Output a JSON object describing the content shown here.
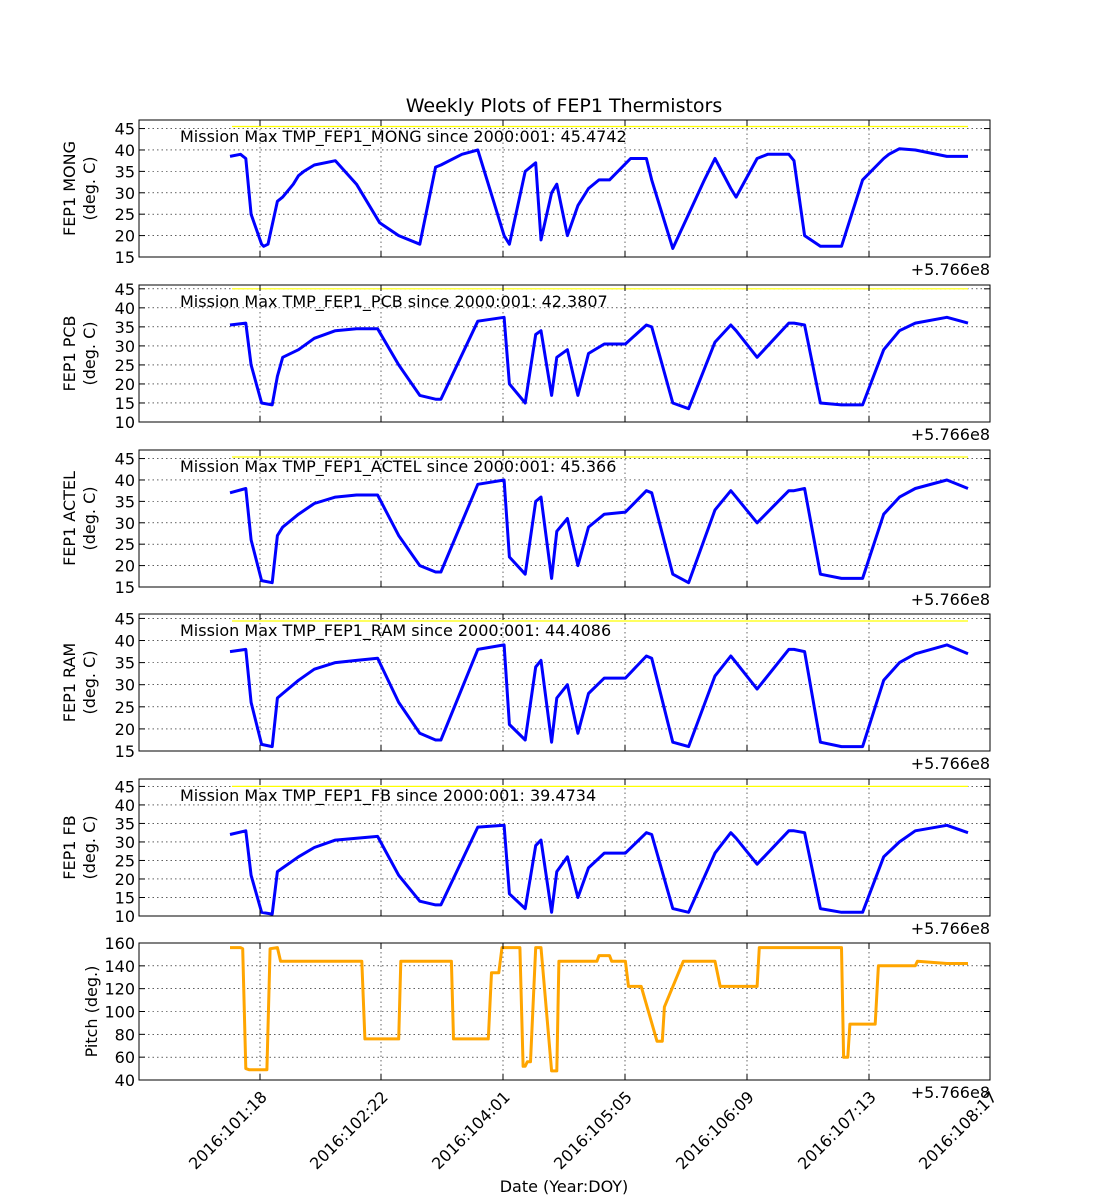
{
  "figure": {
    "title": "Weekly Plots of FEP1 Thermistors",
    "xlabel": "Date (Year:DOY)",
    "x_offset_label": "+5.766e8",
    "x_ticks": [
      "2016:101:18",
      "2016:102:22",
      "2016:104:01",
      "2016:105:05",
      "2016:106:09",
      "2016:107:13",
      "2016:108:17"
    ]
  },
  "chart_data": [
    {
      "type": "line",
      "ylabel": [
        "FEP1 MONG",
        "(deg. C)"
      ],
      "ylim": [
        15,
        47
      ],
      "yticks": [
        15,
        20,
        25,
        30,
        35,
        40,
        45
      ],
      "grid": true,
      "annotation": "Mission Max TMP_FEP1_MONG since 2000:001: 45.4742",
      "reference_value": 45.4742,
      "reference_color": "#ffff00",
      "series_color": "#0000ff",
      "x_range": [
        0,
        7
      ],
      "x": [
        0.0,
        0.1,
        0.15,
        0.2,
        0.3,
        0.32,
        0.36,
        0.45,
        0.5,
        0.6,
        0.65,
        0.7,
        0.8,
        1.0,
        1.2,
        1.42,
        1.6,
        1.8,
        1.95,
        2.0,
        2.2,
        2.35,
        2.5,
        2.6,
        2.65,
        2.8,
        2.9,
        2.95,
        3.05,
        3.1,
        3.2,
        3.3,
        3.4,
        3.5,
        3.6,
        3.8,
        3.95,
        4.0,
        4.2,
        4.35,
        4.5,
        4.6,
        4.75,
        4.8,
        5.0,
        5.1,
        5.3,
        5.35,
        5.45,
        5.6,
        5.8,
        6.0,
        6.2,
        6.25,
        6.35,
        6.5,
        6.8,
        7.0
      ],
      "y": [
        38.5,
        39,
        38,
        25,
        18,
        17.5,
        18,
        28,
        29,
        32,
        34,
        35,
        36.5,
        37.5,
        32,
        23,
        20,
        18,
        36,
        36.5,
        39,
        40,
        28,
        20,
        18,
        35,
        37,
        19,
        30,
        32,
        20,
        27,
        31,
        33,
        33,
        38,
        38,
        33,
        17,
        25,
        33,
        38,
        31,
        29,
        38,
        39,
        39,
        37.5,
        20,
        17.5,
        17.5,
        33,
        38,
        39,
        40.3,
        40,
        38.5,
        38.5
      ],
      "x_key": [
        0.0,
        0.1,
        0.15,
        0.2,
        0.3,
        0.36,
        0.45,
        0.5,
        0.6,
        0.65,
        0.8,
        1.0,
        1.2,
        1.42,
        1.6,
        1.8,
        1.95,
        2.0,
        2.35,
        2.6,
        2.65,
        2.8,
        2.9,
        2.95,
        3.05,
        3.1,
        3.2,
        3.3,
        3.4,
        3.5,
        3.6,
        3.8,
        3.95,
        4.0,
        4.2,
        4.5,
        4.6,
        4.75,
        4.8,
        5.0,
        5.3,
        5.35,
        5.45,
        5.6,
        6.0,
        6.2,
        6.35,
        6.5,
        6.8,
        7.0
      ]
    },
    {
      "type": "line",
      "ylabel": [
        "FEP1 PCB",
        "(deg. C)"
      ],
      "ylim": [
        10,
        46
      ],
      "yticks": [
        10,
        15,
        20,
        25,
        30,
        35,
        40,
        45
      ],
      "grid": true,
      "annotation": "Mission Max TMP_FEP1_PCB since 2000:001: 42.3807",
      "reference_value": 45,
      "reference_color": "#ffff00",
      "series_color": "#0000ff",
      "x": [
        0.0,
        0.15,
        0.2,
        0.3,
        0.4,
        0.45,
        0.5,
        0.65,
        0.8,
        1.0,
        1.2,
        1.4,
        1.6,
        1.8,
        1.95,
        2.0,
        2.35,
        2.6,
        2.65,
        2.8,
        2.9,
        2.95,
        3.05,
        3.1,
        3.2,
        3.3,
        3.4,
        3.55,
        3.75,
        3.95,
        4.0,
        4.2,
        4.35,
        4.6,
        4.75,
        4.8,
        5.0,
        5.3,
        5.35,
        5.45,
        5.6,
        5.8,
        6.0,
        6.2,
        6.35,
        6.5,
        6.8,
        7.0
      ],
      "y": [
        35.5,
        36,
        25,
        15,
        14.5,
        22,
        27,
        29,
        32,
        34,
        34.5,
        34.5,
        25,
        17,
        16,
        16,
        36.5,
        37.5,
        20,
        15,
        33,
        34,
        17,
        27,
        29,
        17,
        28,
        30.5,
        30.5,
        35.5,
        35,
        15,
        13.5,
        31,
        35.5,
        34,
        27,
        36,
        36,
        35.5,
        15,
        14.5,
        14.5,
        29,
        34,
        36,
        37.5,
        36
      ]
    },
    {
      "type": "line",
      "ylabel": [
        "FEP1 ACTEL",
        "(deg. C)"
      ],
      "ylim": [
        15,
        47
      ],
      "yticks": [
        15,
        20,
        25,
        30,
        35,
        40,
        45
      ],
      "grid": true,
      "annotation": "Mission Max TMP_FEP1_ACTEL since 2000:001: 45.366",
      "reference_value": 45.366,
      "reference_color": "#ffff00",
      "series_color": "#0000ff",
      "x": [
        0.0,
        0.15,
        0.2,
        0.3,
        0.4,
        0.45,
        0.5,
        0.65,
        0.8,
        1.0,
        1.2,
        1.4,
        1.6,
        1.8,
        1.95,
        2.0,
        2.35,
        2.6,
        2.65,
        2.8,
        2.9,
        2.95,
        3.05,
        3.1,
        3.2,
        3.3,
        3.4,
        3.55,
        3.75,
        3.95,
        4.0,
        4.2,
        4.35,
        4.6,
        4.75,
        4.8,
        5.0,
        5.3,
        5.35,
        5.45,
        5.6,
        5.8,
        6.0,
        6.2,
        6.35,
        6.5,
        6.8,
        7.0
      ],
      "y": [
        37,
        38,
        26,
        16.5,
        16,
        27,
        29,
        32,
        34.5,
        36,
        36.5,
        36.5,
        27,
        20,
        18.5,
        18.5,
        39,
        40,
        22,
        18,
        35,
        36,
        17,
        28,
        31,
        20,
        29,
        32,
        32.5,
        37.5,
        37,
        18,
        16,
        33,
        37.5,
        36,
        30,
        37.5,
        37.5,
        38,
        18,
        17,
        17,
        32,
        36,
        38,
        40,
        38
      ]
    },
    {
      "type": "line",
      "ylabel": [
        "FEP1 RAM",
        "(deg. C)"
      ],
      "ylim": [
        15,
        46
      ],
      "yticks": [
        15,
        20,
        25,
        30,
        35,
        40,
        45
      ],
      "grid": true,
      "annotation": "Mission Max TMP_FEP1_RAM since 2000:001: 44.4086",
      "reference_value": 44.4086,
      "reference_color": "#ffff00",
      "series_color": "#0000ff",
      "x": [
        0.0,
        0.15,
        0.2,
        0.3,
        0.4,
        0.45,
        0.5,
        0.65,
        0.8,
        1.0,
        1.2,
        1.4,
        1.6,
        1.8,
        1.95,
        2.0,
        2.35,
        2.6,
        2.65,
        2.8,
        2.9,
        2.95,
        3.05,
        3.1,
        3.2,
        3.3,
        3.4,
        3.55,
        3.75,
        3.95,
        4.0,
        4.2,
        4.35,
        4.6,
        4.75,
        4.8,
        5.0,
        5.3,
        5.35,
        5.45,
        5.6,
        5.8,
        6.0,
        6.2,
        6.35,
        6.5,
        6.8,
        7.0
      ],
      "y": [
        37.5,
        38,
        26,
        16.5,
        16,
        27,
        28,
        31,
        33.5,
        35,
        35.5,
        36,
        26,
        19,
        17.5,
        17.5,
        38,
        39,
        21,
        17.5,
        34,
        35.5,
        17,
        27,
        30,
        19,
        28,
        31.5,
        31.5,
        36.5,
        36,
        17,
        16,
        32,
        36.5,
        35,
        29,
        38,
        38,
        37.5,
        17,
        16,
        16,
        31,
        35,
        37,
        39,
        37
      ]
    },
    {
      "type": "line",
      "ylabel": [
        "FEP1 FB",
        "(deg. C)"
      ],
      "ylim": [
        10,
        47
      ],
      "yticks": [
        10,
        15,
        20,
        25,
        30,
        35,
        40,
        45
      ],
      "grid": true,
      "annotation": "Mission Max TMP_FEP1_FB since 2000:001: 39.4734",
      "reference_value": 45,
      "reference_color": "#ffff00",
      "series_color": "#0000ff",
      "x": [
        0.0,
        0.15,
        0.2,
        0.3,
        0.4,
        0.45,
        0.5,
        0.65,
        0.8,
        1.0,
        1.2,
        1.4,
        1.6,
        1.8,
        1.95,
        2.0,
        2.35,
        2.6,
        2.65,
        2.8,
        2.9,
        2.95,
        3.05,
        3.1,
        3.2,
        3.3,
        3.4,
        3.55,
        3.75,
        3.95,
        4.0,
        4.2,
        4.35,
        4.6,
        4.75,
        4.8,
        5.0,
        5.3,
        5.35,
        5.45,
        5.6,
        5.8,
        6.0,
        6.2,
        6.35,
        6.5,
        6.8,
        7.0
      ],
      "y": [
        32,
        33,
        21,
        11,
        10.5,
        22,
        23,
        26,
        28.5,
        30.5,
        31,
        31.5,
        21,
        14,
        13,
        13,
        34,
        34.5,
        16,
        12,
        29,
        30.5,
        11,
        22,
        26,
        15,
        23,
        27,
        27,
        32.5,
        32,
        12,
        11,
        27,
        32.5,
        31,
        24,
        33,
        33,
        32.5,
        12,
        11,
        11,
        26,
        30,
        33,
        34.5,
        32.5
      ]
    },
    {
      "type": "line",
      "ylabel": [
        "Pitch (deg.)"
      ],
      "ylim": [
        40,
        160
      ],
      "yticks": [
        40,
        60,
        80,
        100,
        120,
        140,
        160
      ],
      "grid": true,
      "series_color": "#ffa500",
      "x": [
        0.0,
        0.1,
        0.12,
        0.15,
        0.18,
        0.35,
        0.38,
        0.45,
        0.48,
        1.25,
        1.28,
        1.6,
        1.62,
        2.1,
        2.12,
        2.45,
        2.48,
        2.55,
        2.58,
        2.75,
        2.78,
        2.8,
        2.82,
        2.85,
        2.9,
        2.92,
        2.95,
        3.05,
        3.1,
        3.12,
        3.2,
        3.22,
        3.48,
        3.5,
        3.6,
        3.62,
        3.75,
        3.78,
        3.88,
        3.9,
        4.05,
        4.1,
        4.12,
        4.3,
        4.35,
        4.38,
        4.6,
        4.65,
        5.0,
        5.02,
        5.25,
        5.3,
        5.8,
        5.82,
        5.86,
        5.88,
        6.12,
        6.15,
        6.5,
        6.52,
        6.8,
        7.0
      ],
      "y": [
        156,
        156,
        155,
        50,
        49,
        49,
        155,
        156,
        144,
        144,
        76,
        76,
        144,
        144,
        76,
        76,
        134,
        134,
        156,
        156,
        52,
        52,
        56,
        56,
        156,
        156,
        156,
        48,
        48,
        144,
        144,
        144,
        144,
        149,
        149,
        144,
        144,
        122,
        122,
        122,
        74,
        74,
        104,
        144,
        144,
        144,
        144,
        122,
        122,
        156,
        156,
        156,
        156,
        60,
        60,
        89,
        89,
        140,
        140,
        144,
        142,
        142
      ]
    }
  ]
}
